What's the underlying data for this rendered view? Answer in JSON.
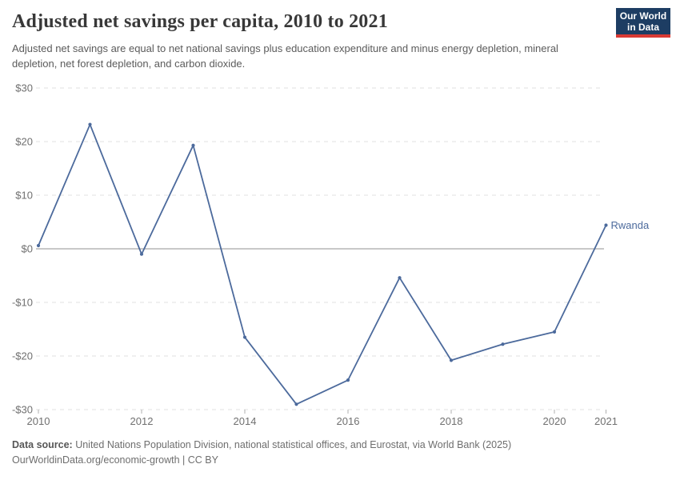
{
  "header": {
    "title": "Adjusted net savings per capita, 2010 to 2021",
    "subtitle": "Adjusted net savings are equal to net national savings plus education expenditure and minus energy depletion, mineral depletion, net forest depletion, and carbon dioxide.",
    "logo": {
      "line1": "Our World",
      "line2": "in Data",
      "bg_color": "#1d3d63",
      "stripe_color": "#d93a34",
      "text_color": "#ffffff"
    }
  },
  "chart_data": {
    "type": "line",
    "title": "Adjusted net savings per capita, 2010 to 2021",
    "xlabel": "",
    "ylabel": "",
    "x": [
      2010,
      2011,
      2012,
      2013,
      2014,
      2015,
      2016,
      2017,
      2018,
      2019,
      2020,
      2021
    ],
    "series": [
      {
        "name": "Rwanda",
        "color": "#4c6a9c",
        "values": [
          0.6,
          23.2,
          -1.0,
          19.3,
          -16.5,
          -29.0,
          -24.5,
          -5.4,
          -20.8,
          -17.8,
          -15.5,
          4.4
        ]
      }
    ],
    "end_label": "Rwanda",
    "xlim": [
      2010,
      2021
    ],
    "ylim": [
      -30,
      30
    ],
    "x_ticks": [
      2010,
      2012,
      2014,
      2016,
      2018,
      2020,
      2021
    ],
    "y_ticks": [
      30,
      20,
      10,
      0,
      -10,
      -20,
      -30
    ],
    "y_tick_labels": [
      "$30",
      "$20",
      "$10",
      "$0",
      "-$10",
      "-$20",
      "-$30"
    ],
    "grid": "horizontal-dashed",
    "zero_line": true,
    "legend_position": "end-of-line-label",
    "unit_prefix": "$"
  },
  "footer": {
    "datasource_label": "Data source:",
    "datasource_text": " United Nations Population Division, national statistical offices, and Eurostat, via World Bank (2025)",
    "link": "OurWorldinData.org/economic-growth",
    "separator": " | ",
    "license": "CC BY"
  },
  "colors": {
    "line": "#4c6a9c",
    "grid": "#e2e2e2",
    "zero_line": "#a8a8a8",
    "axis_tick": "#b0b0b0",
    "tick_label": "#707070",
    "title_text": "#383838",
    "subtitle_text": "#5b5b5b",
    "entity_label": "#4c6a9c"
  }
}
